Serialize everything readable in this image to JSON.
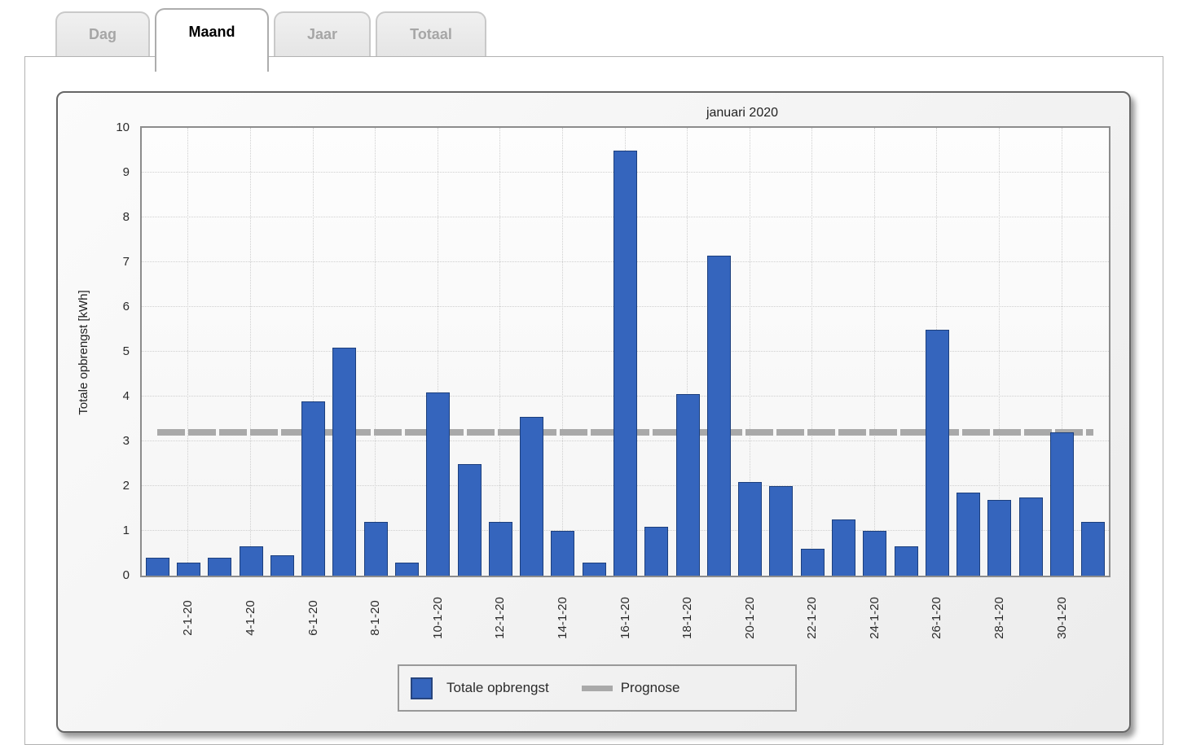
{
  "tabs": [
    {
      "label": "Dag",
      "active": false
    },
    {
      "label": "Maand",
      "active": true
    },
    {
      "label": "Jaar",
      "active": false
    },
    {
      "label": "Totaal",
      "active": false
    }
  ],
  "chart_data": {
    "type": "bar",
    "title": "januari 2020",
    "xlabel": "",
    "ylabel": "Totale opbrengst [kWh]",
    "ylim": [
      0,
      10
    ],
    "ytick_step": 1,
    "grid": true,
    "legend_position": "bottom-center",
    "xtick_label_every": 2,
    "categories": [
      "1-1-20",
      "2-1-20",
      "3-1-20",
      "4-1-20",
      "5-1-20",
      "6-1-20",
      "7-1-20",
      "8-1-20",
      "9-1-20",
      "10-1-20",
      "11-1-20",
      "12-1-20",
      "13-1-20",
      "14-1-20",
      "15-1-20",
      "16-1-20",
      "17-1-20",
      "18-1-20",
      "19-1-20",
      "20-1-20",
      "21-1-20",
      "22-1-20",
      "23-1-20",
      "24-1-20",
      "25-1-20",
      "26-1-20",
      "27-1-20",
      "28-1-20",
      "29-1-20",
      "30-1-20",
      "31-1-20"
    ],
    "values": [
      0.4,
      0.3,
      0.4,
      0.65,
      0.45,
      3.9,
      5.1,
      1.2,
      0.3,
      4.1,
      2.5,
      1.2,
      3.55,
      1.0,
      0.3,
      9.5,
      1.1,
      4.05,
      7.15,
      2.1,
      2.0,
      0.6,
      1.25,
      1.0,
      0.65,
      5.5,
      1.85,
      1.7,
      1.75,
      3.2,
      1.2
    ],
    "series": [
      {
        "name": "Totale opbrengst",
        "type": "bar",
        "color": "#3565BD"
      },
      {
        "name": "Prognose",
        "type": "line",
        "color": "#A9A9A9",
        "value": 3.2
      }
    ],
    "prognose_value": 3.2,
    "colors": {
      "bar_fill": "#3565BD",
      "bar_border": "#1C3F7D",
      "prognose": "#A9A9A9"
    }
  }
}
